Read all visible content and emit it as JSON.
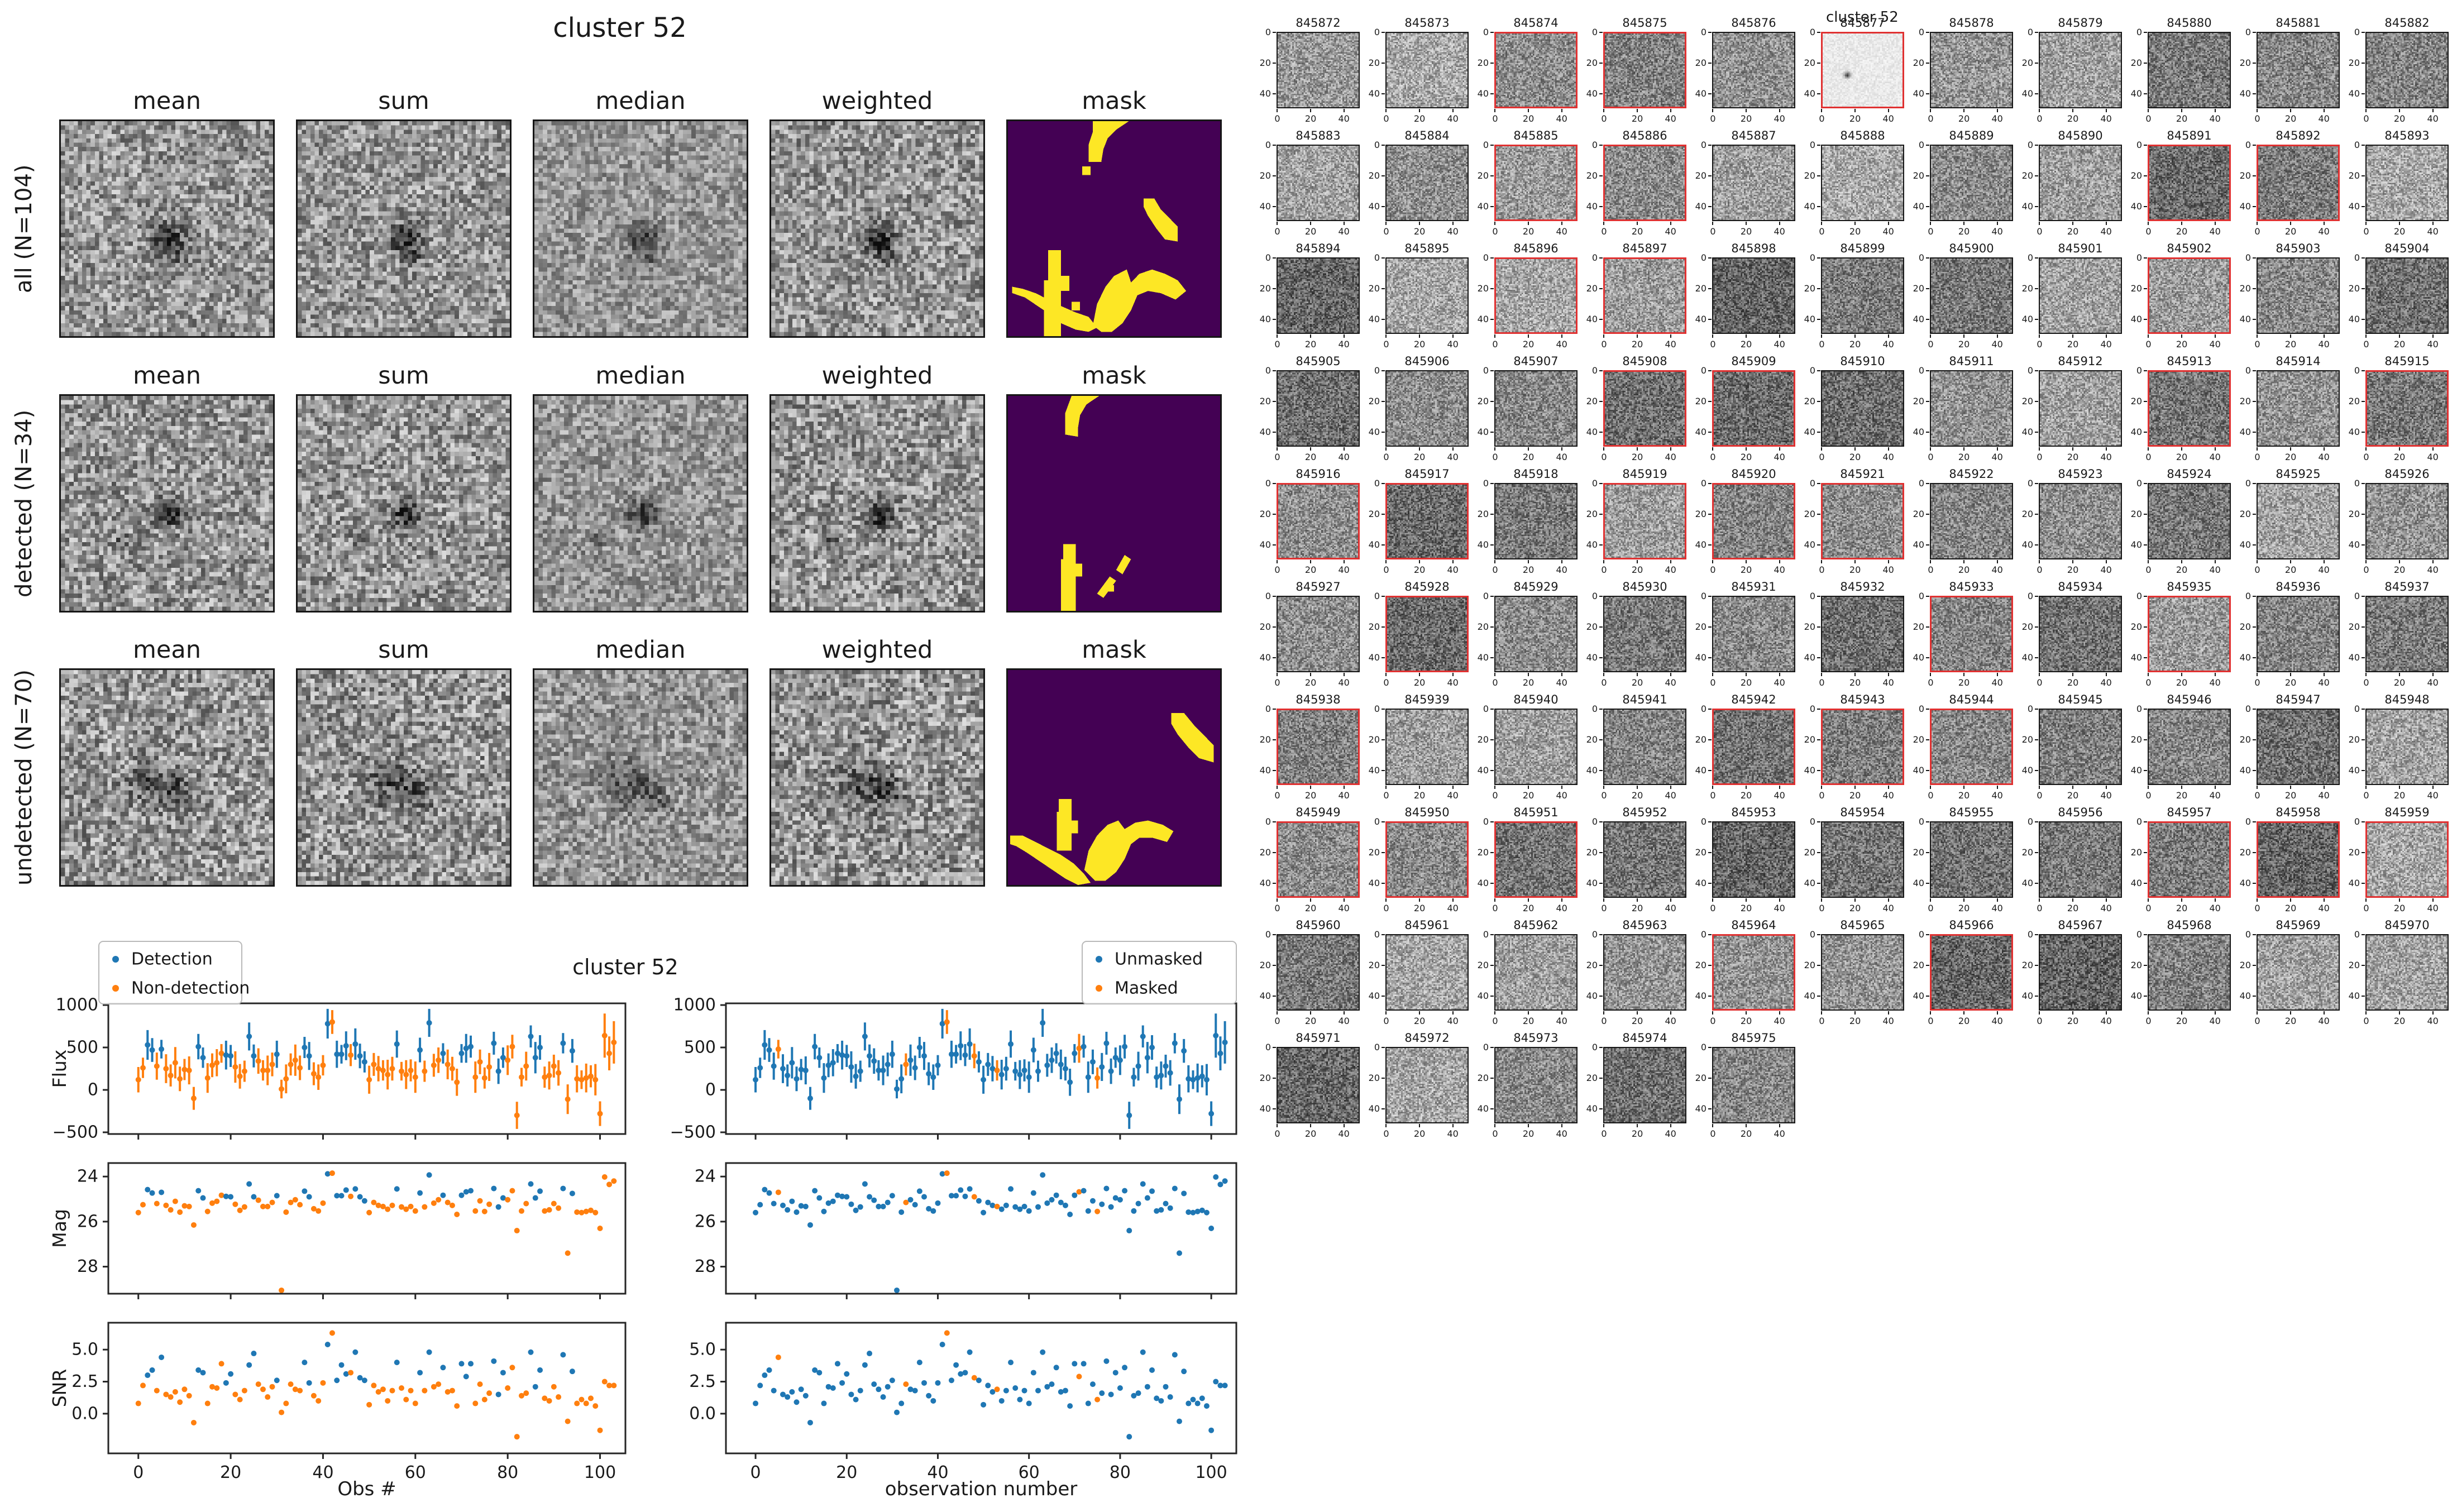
{
  "colors": {
    "detection": "#1f77b4",
    "non_detection": "#ff7f0e",
    "mask_bg": "#440154",
    "mask_fg": "#fde725",
    "red_border": "#e03131",
    "spine": "#262626"
  },
  "stack_figure": {
    "title": "cluster 52",
    "col_titles": [
      "mean",
      "sum",
      "median",
      "weighted",
      "mask"
    ],
    "rows": [
      {
        "label": "all (N=104)"
      },
      {
        "label": "detected (N=34)"
      },
      {
        "label": "undetected (N=70)"
      }
    ],
    "masks": [
      [
        "M40,0 L57,0 L51,4 L47,8 L45,13 L44,19 L38,19 L38,11 L40,5 Z",
        "M35,21 L39,21 L39,25 L35,25 Z",
        "M64,36 L69,36 L72,41 L76,45 L80,49 L80,56 L74,55 L70,50 L66,44 L64,40 Z",
        "M19,60 L25,60 L25,100 L17,100 L17,74 L19,74 Z",
        "M25,72 L29,72 L29,79 L25,79 Z",
        "M30,84 L34,84 L34,88 L30,88 Z",
        "M2,80 L8,82 L14,86 L20,90 L25,94 L32,97 L38,98 L42,96 L38,91 L32,89 L25,86 L19,83 L13,80 L7,78 L2,77 Z",
        "M40,95 L42,85 L46,77 L50,72 L56,69 L58,75 L62,71 L68,69 L74,71 L80,74 L84,79 L79,83 L72,80 L66,79 L61,81 L58,88 L54,94 L49,98 L44,98 Z"
      ],
      [
        "M30,0 L43,0 L37,4 L34,9 L33,15 L33,19 L27,18 L27,8 Z",
        "M26,69 L32,69 L32,100 L25,100 L25,76 L26,76 Z",
        "M32,78 L35,78 L35,84 L32,84 Z",
        "M42,92 L48,84 L51,86 L45,94 Z",
        "M51,81 L55,74 L58,76 L54,83 Z",
        "M47,88 L50,88 L50,91 L47,91 Z"
      ],
      [
        "M77,20 L83,20 L88,26 L93,31 L97,35 L97,43 L90,41 L85,36 L80,30 L77,25 Z",
        "M24,60 L30,60 L30,84 L23,84 L23,66 L24,66 Z",
        "M30,70 L33,70 L33,76 L30,76 Z",
        "M1,77 L7,77 L13,80 L19,83 L25,86 L31,90 L36,95 L39,99 L33,100 L27,97 L21,93 L15,89 L9,85 L4,82 L1,81 Z",
        "M36,93 L38,84 L42,77 L47,72 L52,70 L55,74 L60,71 L66,70 L73,72 L78,75 L75,80 L68,78 L62,78 L58,81 L55,88 L51,94 L46,98 L41,98 Z"
      ]
    ]
  },
  "scatter_figure": {
    "title": "cluster 52",
    "legend_left": {
      "items": [
        {
          "label": "Detection",
          "color": "#1f77b4"
        },
        {
          "label": "Non-detection",
          "color": "#ff7f0e"
        }
      ]
    },
    "legend_right": {
      "items": [
        {
          "label": "Unmasked",
          "color": "#1f77b4"
        },
        {
          "label": "Masked",
          "color": "#ff7f0e"
        }
      ]
    },
    "ylabels": [
      "Flux",
      "Mag",
      "SNR"
    ],
    "xlabel_left": "Obs #",
    "xlabel_right": "observation number",
    "x_tick_labels": [
      "0",
      "20",
      "40",
      "60",
      "80",
      "100"
    ],
    "x_ticks": [
      0,
      20,
      40,
      60,
      80,
      100
    ],
    "flux_ticks": [
      1000,
      500,
      0,
      -500
    ],
    "flux_tick_labels": [
      "1000",
      "500",
      "0",
      "−500"
    ],
    "mag_ticks": [
      24,
      26,
      28
    ],
    "mag_tick_labels": [
      "24",
      "26",
      "28"
    ],
    "snr_ticks": [
      5.0,
      2.5,
      0.0
    ],
    "snr_tick_labels": [
      "5.0",
      "2.5",
      "0.0"
    ]
  },
  "chart_data": {
    "type": "scatter",
    "title": "cluster 52",
    "panels": [
      "Flux vs Obs #",
      "Mag vs Obs #",
      "SNR vs Obs #"
    ],
    "x_is_observation_index": true,
    "n_obs": 104,
    "xlim": [
      -6.5,
      105.5
    ],
    "flux_ylim": [
      -520,
      1020
    ],
    "mag_ylim": [
      29.2,
      23.4
    ],
    "snr_ylim": [
      -3.1,
      7.1
    ],
    "flux": [
      120,
      260,
      530,
      470,
      280,
      480,
      250,
      170,
      320,
      130,
      240,
      230,
      -100,
      510,
      380,
      140,
      290,
      320,
      430,
      410,
      400,
      270,
      160,
      220,
      630,
      400,
      340,
      230,
      230,
      300,
      420,
      10,
      130,
      300,
      350,
      260,
      500,
      400,
      190,
      150,
      290,
      780,
      800,
      420,
      420,
      520,
      410,
      540,
      400,
      330,
      120,
      300,
      250,
      230,
      180,
      250,
      540,
      220,
      180,
      230,
      150,
      470,
      220,
      790,
      290,
      350,
      430,
      300,
      250,
      90,
      430,
      490,
      510,
      150,
      330,
      140,
      270,
      550,
      220,
      380,
      350,
      510,
      -300,
      150,
      280,
      630,
      380,
      500,
      150,
      170,
      280,
      200,
      550,
      -110,
      460,
      130,
      120,
      140,
      160,
      120,
      -280,
      640,
      430,
      560
    ],
    "flux_err": [
      150,
      120,
      175,
      140,
      160,
      110,
      170,
      130,
      185,
      145,
      125,
      165,
      135,
      150,
      120,
      175,
      140,
      160,
      110,
      170,
      130,
      185,
      145,
      125,
      165,
      135,
      150,
      120,
      175,
      140,
      160,
      110,
      170,
      130,
      185,
      145,
      125,
      165,
      135,
      150,
      120,
      175,
      140,
      160,
      110,
      170,
      130,
      185,
      145,
      125,
      165,
      135,
      150,
      120,
      175,
      140,
      160,
      110,
      170,
      130,
      185,
      145,
      125,
      165,
      135,
      150,
      120,
      175,
      140,
      160,
      110,
      170,
      130,
      185,
      145,
      125,
      165,
      135,
      150,
      120,
      175,
      140,
      160,
      110,
      170,
      130,
      185,
      145,
      125,
      165,
      135,
      150,
      120,
      175,
      140,
      160,
      110,
      170,
      130,
      185,
      145,
      260,
      200,
      250
    ],
    "mag": [
      25.6,
      25.25,
      24.58,
      24.73,
      25.2,
      24.7,
      25.28,
      25.48,
      25.1,
      25.58,
      25.3,
      25.33,
      26.15,
      24.63,
      24.95,
      25.55,
      25.18,
      25.1,
      24.83,
      24.88,
      24.9,
      25.23,
      25.5,
      25.35,
      24.33,
      24.9,
      25.05,
      25.33,
      25.33,
      25.15,
      24.85,
      29.05,
      25.58,
      25.15,
      25.03,
      25.25,
      24.65,
      24.9,
      25.43,
      25.53,
      25.18,
      23.88,
      23.85,
      24.85,
      24.85,
      24.6,
      24.88,
      24.55,
      24.9,
      25.08,
      25.6,
      25.15,
      25.28,
      25.33,
      25.45,
      25.28,
      24.55,
      25.35,
      25.45,
      25.33,
      25.53,
      24.73,
      25.35,
      23.93,
      25.18,
      25.03,
      24.83,
      25.15,
      25.28,
      25.68,
      24.83,
      24.68,
      24.63,
      25.53,
      25.08,
      25.55,
      25.23,
      24.53,
      25.35,
      24.95,
      25.03,
      24.63,
      26.4,
      25.53,
      25.2,
      24.33,
      24.95,
      24.65,
      25.53,
      25.48,
      25.2,
      25.4,
      24.53,
      27.4,
      24.75,
      25.58,
      25.6,
      25.55,
      25.5,
      25.6,
      26.3,
      24.02,
      24.35,
      24.2
    ],
    "snr": [
      0.8,
      2.2,
      3.0,
      3.4,
      1.8,
      4.4,
      1.5,
      1.3,
      1.7,
      0.9,
      1.9,
      1.4,
      -0.7,
      3.4,
      3.2,
      0.8,
      2.1,
      2.0,
      3.9,
      2.4,
      3.1,
      1.5,
      1.1,
      1.8,
      3.8,
      4.7,
      2.3,
      1.9,
      1.3,
      2.1,
      2.6,
      0.1,
      0.8,
      2.3,
      1.9,
      1.8,
      4.0,
      2.4,
      1.4,
      1.0,
      2.4,
      5.4,
      6.3,
      2.6,
      3.8,
      3.1,
      3.2,
      4.8,
      2.8,
      2.6,
      0.7,
      2.2,
      1.7,
      1.9,
      1.0,
      1.8,
      4.0,
      2.0,
      1.1,
      1.8,
      0.8,
      3.2,
      1.8,
      4.8,
      2.1,
      2.3,
      3.6,
      1.7,
      1.8,
      0.6,
      3.9,
      2.9,
      3.9,
      0.8,
      2.3,
      1.1,
      1.6,
      4.1,
      1.5,
      3.2,
      2.0,
      3.6,
      -1.8,
      1.4,
      1.6,
      4.8,
      2.1,
      3.4,
      1.2,
      1.0,
      2.1,
      1.3,
      4.6,
      -0.6,
      3.3,
      0.8,
      1.1,
      0.8,
      1.2,
      0.6,
      -1.3,
      2.5,
      2.2,
      2.2
    ],
    "detected_idx": [
      2,
      3,
      5,
      13,
      14,
      19,
      20,
      24,
      25,
      30,
      36,
      37,
      41,
      43,
      44,
      45,
      47,
      48,
      49,
      56,
      61,
      63,
      66,
      70,
      71,
      72,
      77,
      78,
      79,
      85,
      86,
      87,
      92,
      94
    ],
    "masked_idx": [
      5,
      33,
      42,
      48,
      53,
      71,
      75
    ]
  },
  "cutout_grid": {
    "suptitle": "cluster 52",
    "tick_labels": [
      "0",
      "20",
      "40"
    ],
    "light_id": "845877",
    "ids": [
      "845872",
      "845873",
      "845874",
      "845875",
      "845876",
      "845877",
      "845878",
      "845879",
      "845880",
      "845881",
      "845882",
      "845883",
      "845884",
      "845885",
      "845886",
      "845887",
      "845888",
      "845889",
      "845890",
      "845891",
      "845892",
      "845893",
      "845894",
      "845895",
      "845896",
      "845897",
      "845898",
      "845899",
      "845900",
      "845901",
      "845902",
      "845903",
      "845904",
      "845905",
      "845906",
      "845907",
      "845908",
      "845909",
      "845910",
      "845911",
      "845912",
      "845913",
      "845914",
      "845915",
      "845916",
      "845917",
      "845918",
      "845919",
      "845920",
      "845921",
      "845922",
      "845923",
      "845924",
      "845925",
      "845926",
      "845927",
      "845928",
      "845929",
      "845930",
      "845931",
      "845932",
      "845933",
      "845934",
      "845935",
      "845936",
      "845937",
      "845938",
      "845939",
      "845940",
      "845941",
      "845942",
      "845943",
      "845944",
      "845945",
      "845946",
      "845947",
      "845948",
      "845949",
      "845950",
      "845951",
      "845952",
      "845953",
      "845954",
      "845955",
      "845956",
      "845957",
      "845958",
      "845959",
      "845960",
      "845961",
      "845962",
      "845963",
      "845964",
      "845965",
      "845966",
      "845967",
      "845968",
      "845969",
      "845970",
      "845971",
      "845972",
      "845973",
      "845974",
      "845975"
    ],
    "red_ids": [
      "845874",
      "845875",
      "845877",
      "845885",
      "845886",
      "845891",
      "845892",
      "845896",
      "845897",
      "845902",
      "845908",
      "845909",
      "845913",
      "845915",
      "845916",
      "845917",
      "845919",
      "845920",
      "845921",
      "845928",
      "845933",
      "845935",
      "845938",
      "845942",
      "845943",
      "845944",
      "845949",
      "845950",
      "845951",
      "845957",
      "845958",
      "845959",
      "845964",
      "845966"
    ]
  }
}
